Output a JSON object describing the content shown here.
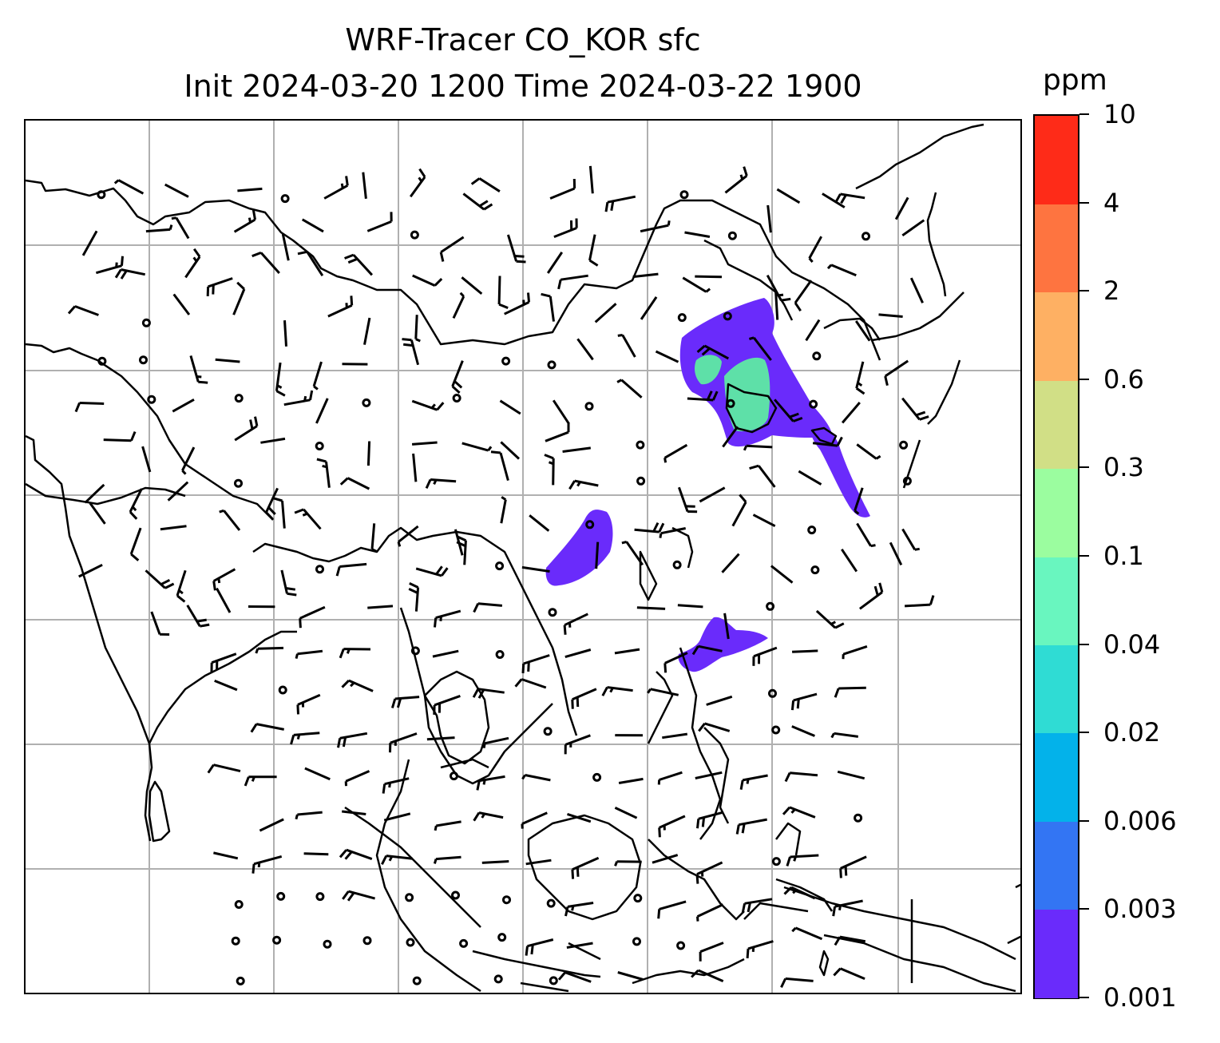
{
  "title": {
    "line1": "WRF-Tracer CO_KOR sfc",
    "line2": "Init 2024-03-20 1200 Time 2024-03-22 1900"
  },
  "colorbar": {
    "unit": "ppm",
    "levels": [
      "0.001",
      "0.003",
      "0.006",
      "0.02",
      "0.04",
      "0.1",
      "0.3",
      "0.6",
      "2",
      "4",
      "10"
    ],
    "colors": [
      "#6a2bfb",
      "#3375f3",
      "#03b2ea",
      "#2fdcd4",
      "#69f6bf",
      "#9bfd9f",
      "#d1df86",
      "#feb063",
      "#fe7440",
      "#fe2b18"
    ]
  },
  "map": {
    "gridlines": true,
    "tracer_field_color": "#6a2bfb",
    "tracer_high_color": "#5ee0a8"
  }
}
